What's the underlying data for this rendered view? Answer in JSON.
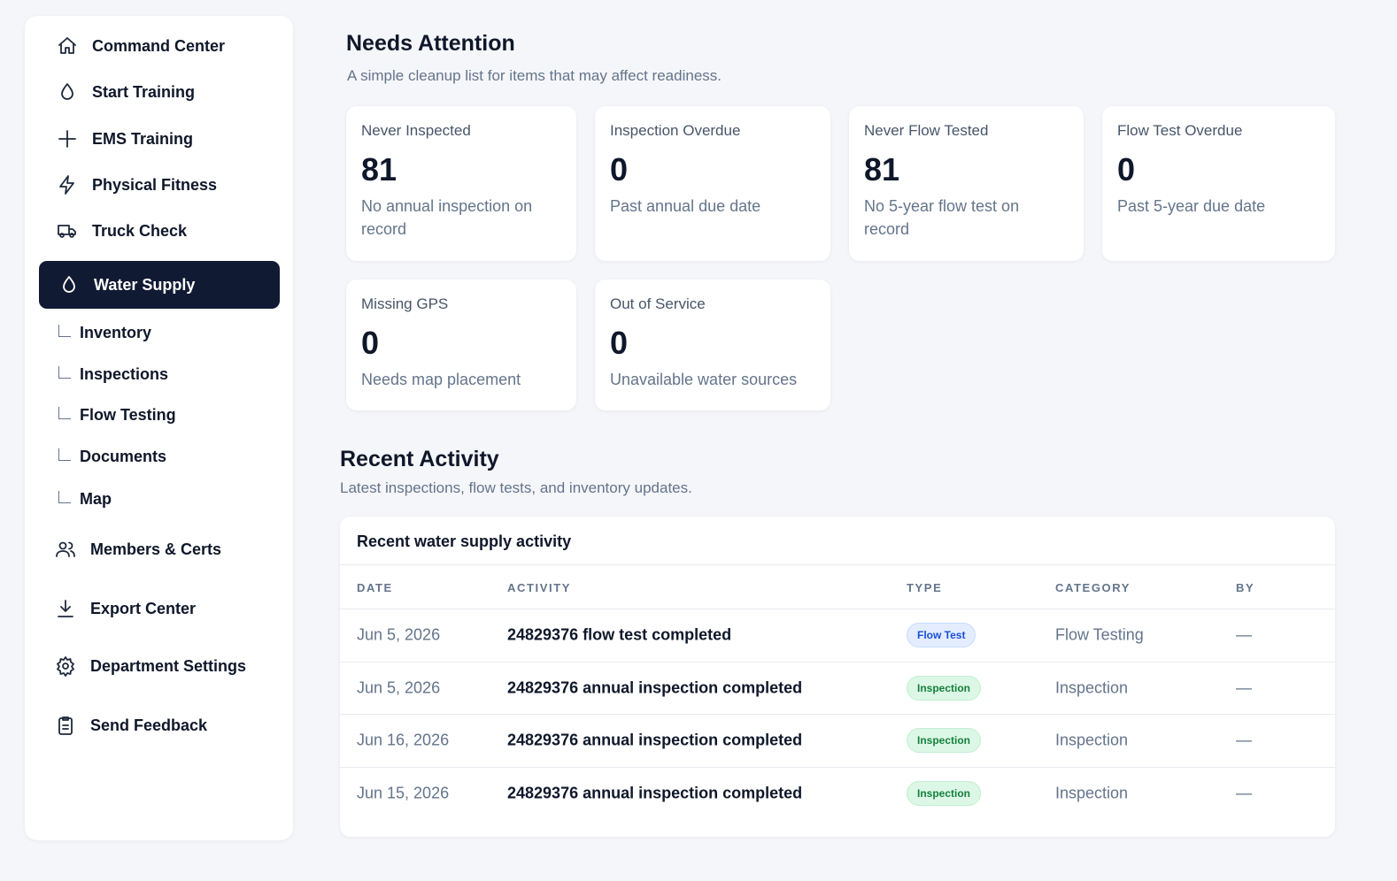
{
  "sidebar": {
    "items": [
      "Command Center",
      "Start Training",
      "EMS Training",
      "Physical Fitness",
      "Truck Check",
      "Water Supply"
    ],
    "subitems": [
      "Inventory",
      "Inspections",
      "Flow Testing",
      "Documents",
      "Map"
    ],
    "bottom_items": [
      "Members & Certs",
      "Export Center",
      "Department Settings",
      "Send Feedback"
    ]
  },
  "needs_attention": {
    "title": "Needs Attention",
    "subtitle": "A simple cleanup list for items that may affect readiness.",
    "cards": [
      {
        "label": "Never Inspected",
        "value": 81,
        "description": "No annual inspection on record"
      },
      {
        "label": "Inspection Overdue",
        "value": 0,
        "description": "Past annual due date"
      },
      {
        "label": "Never Flow Tested",
        "value": 81,
        "description": "No 5-year flow test on record"
      },
      {
        "label": "Flow Test Overdue",
        "value": 0,
        "description": "Past 5-year due date"
      },
      {
        "label": "Missing GPS",
        "value": 0,
        "description": "Needs map placement"
      },
      {
        "label": "Out of Service",
        "value": 0,
        "description": "Unavailable water sources"
      }
    ]
  },
  "recent_activity": {
    "title": "Recent Activity",
    "subtitle": "Latest inspections, flow tests, and inventory updates.",
    "table": {
      "title": "Recent water supply activity",
      "columns": [
        "DATE",
        "ACTIVITY",
        "TYPE",
        "CATEGORY",
        "BY"
      ],
      "rows": [
        [
          "Jun 5, 2026",
          "24829376 flow test completed",
          "Flow Test",
          "Flow Testing",
          "—"
        ],
        [
          "Jun 5, 2026",
          "24829376 annual inspection completed",
          "Inspection",
          "Inspection",
          "—"
        ],
        [
          "Jun 16, 2026",
          "24829376 annual inspection completed",
          "Inspection",
          "Inspection",
          "—"
        ],
        [
          "Jun 15, 2026",
          "24829376 annual inspection completed",
          "Inspection",
          "Inspection",
          "—"
        ]
      ]
    }
  }
}
